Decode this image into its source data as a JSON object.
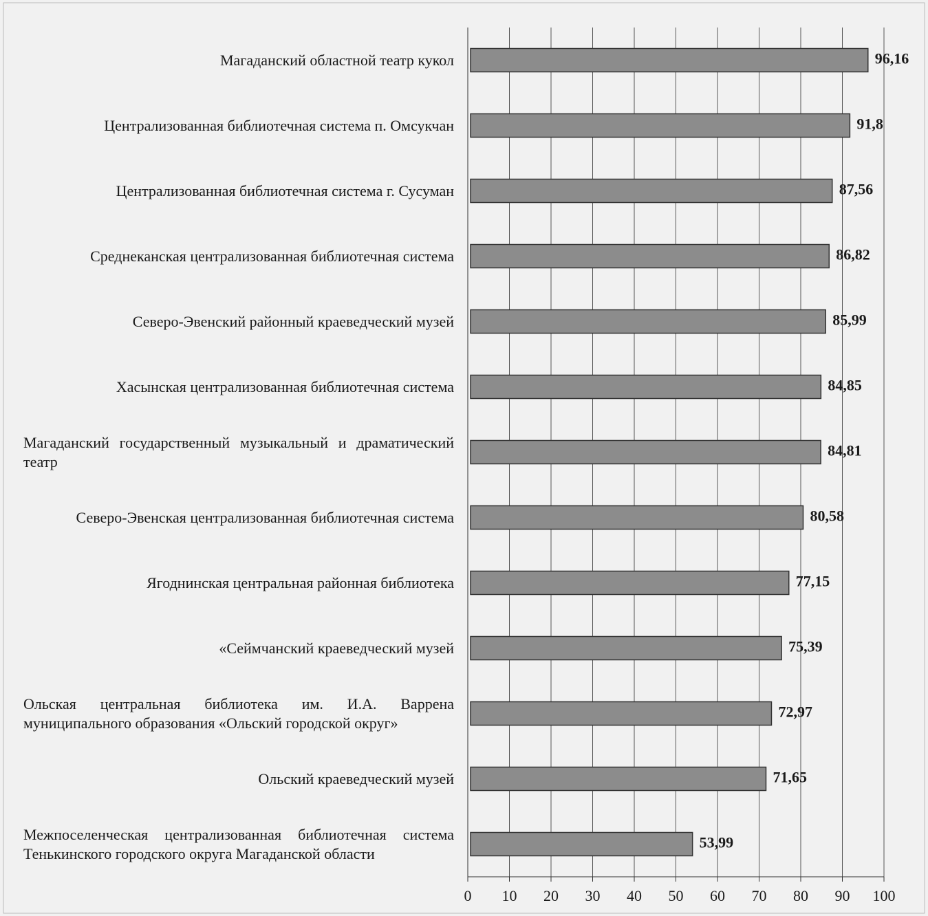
{
  "chart_data": {
    "type": "hbar",
    "categories": [
      "Магаданский областной театр кукол",
      "Централизованная библиотечная система п. Омсукчан",
      "Централизованная библиотечная система г. Сусуман",
      "Среднеканская централизованная библиотечная система",
      "Северо-Эвенский районный краеведческий музей",
      "Хасынская централизованная библиотечная система",
      "Магаданский государственный музыкальный и драматический театр",
      "Северо-Эвенская централизованная библиотечная система",
      "Ягоднинская центральная районная библиотека",
      "«Сеймчанский краеведческий музей",
      "Ольская центральная библиотека им. И.А. Варрена муниципального образования «Ольский городской округ»",
      "Ольский краеведческий музей",
      "Межпоселенческая централизованная библиотечная система Тенькинского городского округа Магаданской области"
    ],
    "values": [
      96.16,
      91.8,
      87.56,
      86.82,
      85.99,
      84.85,
      84.81,
      80.58,
      77.15,
      75.39,
      72.97,
      71.65,
      53.99
    ],
    "value_labels": [
      "96,16",
      "91,8",
      "87,56",
      "86,82",
      "85,99",
      "84,85",
      "84,81",
      "80,58",
      "77,15",
      "75,39",
      "72,97",
      "71,65",
      "53,99"
    ],
    "color": "#8c8c8c",
    "xlim": [
      0,
      100
    ],
    "xticks": [
      0,
      10,
      20,
      30,
      40,
      50,
      60,
      70,
      80,
      90,
      100
    ],
    "grid": true
  }
}
